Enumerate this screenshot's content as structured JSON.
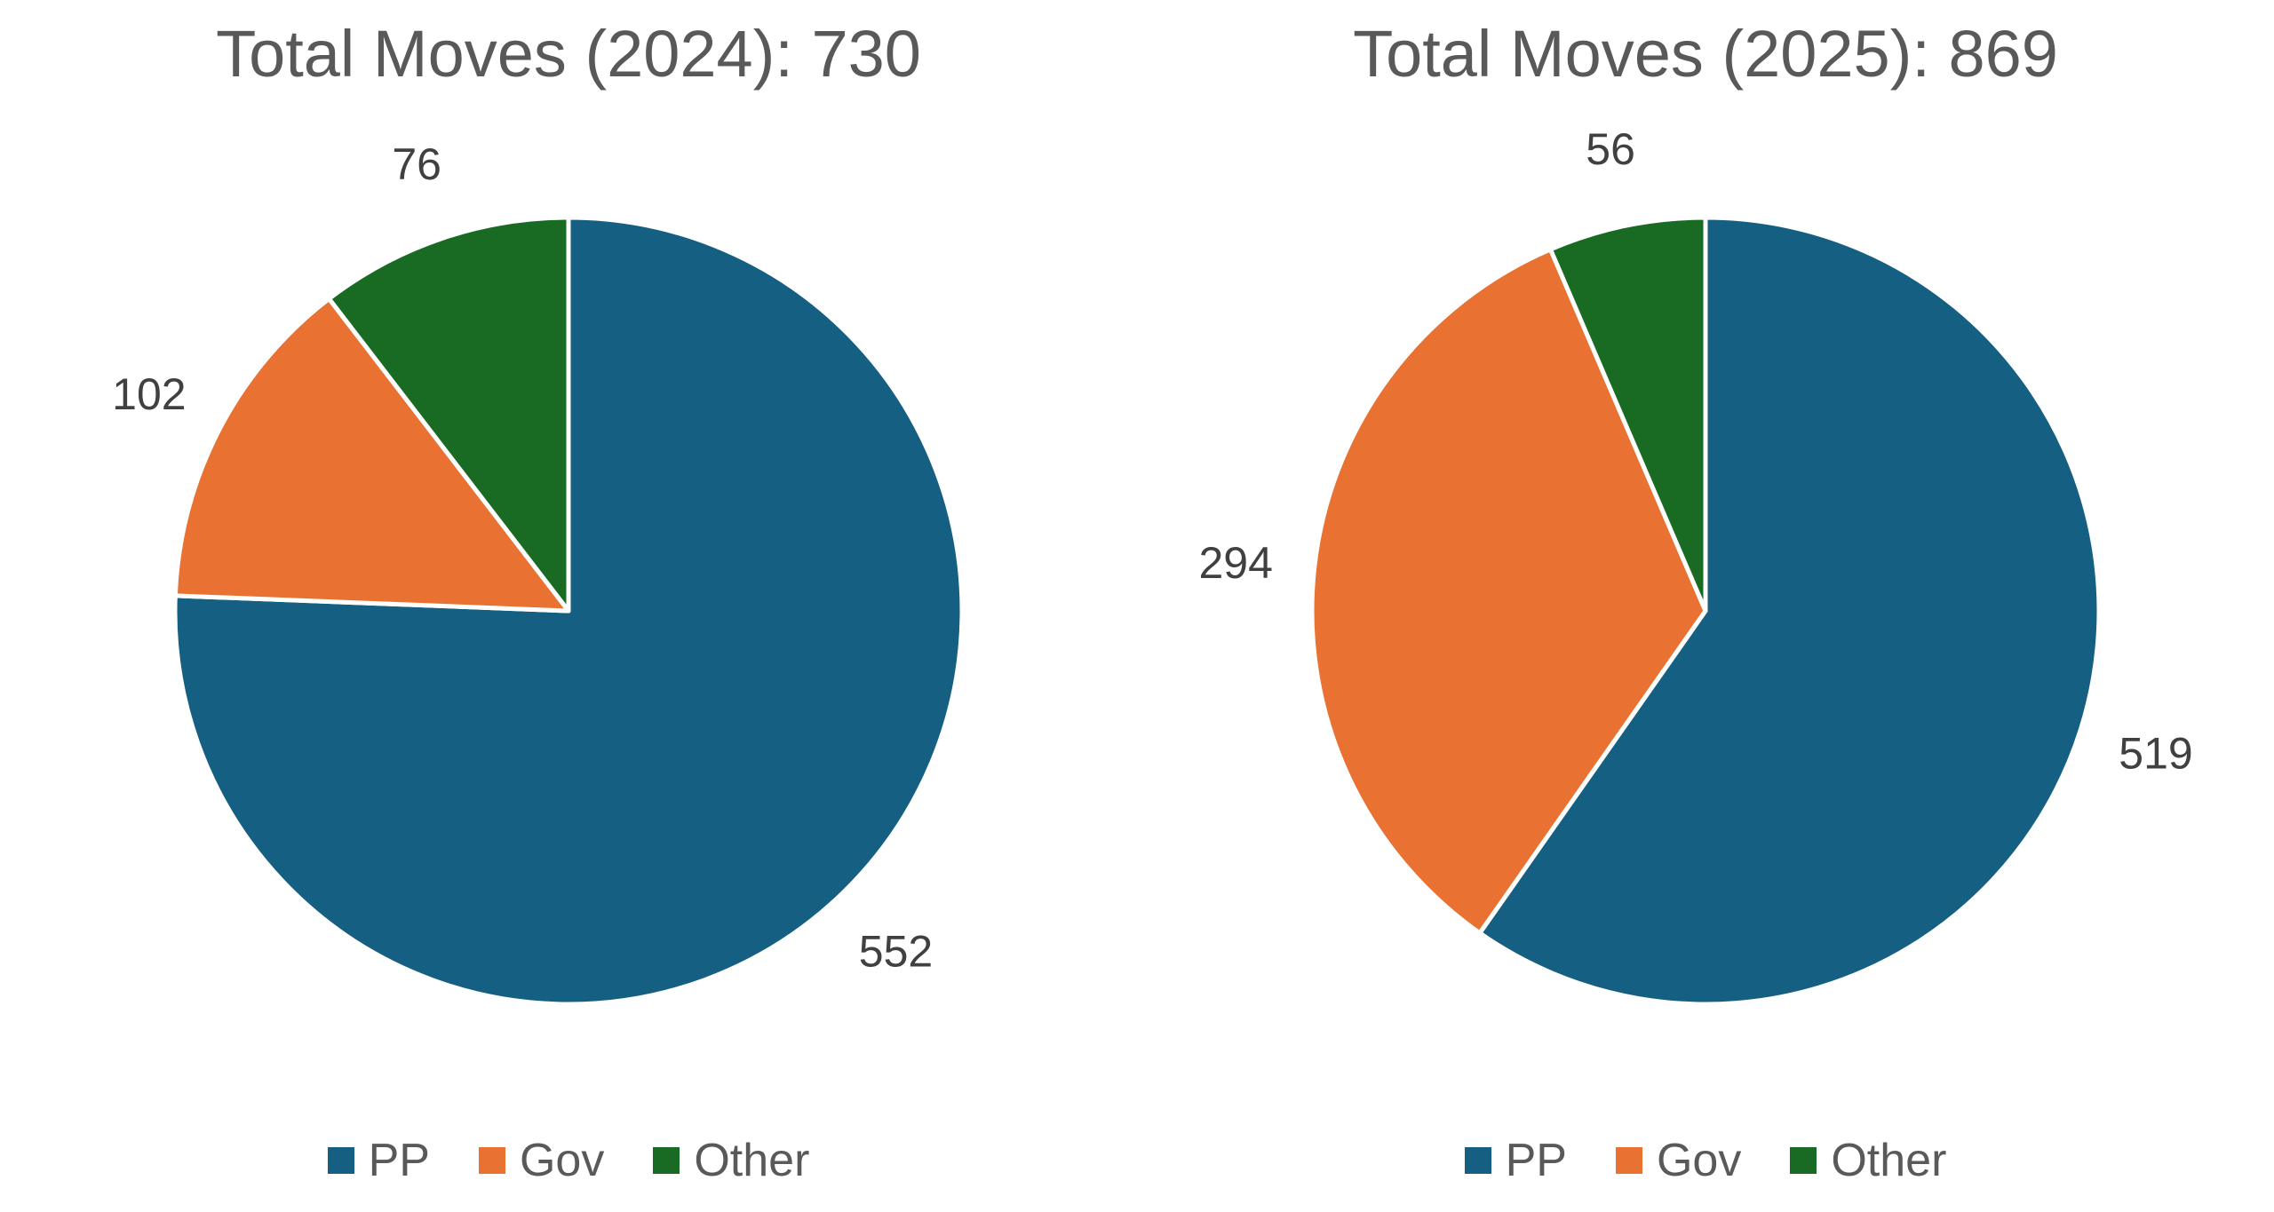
{
  "figure": {
    "background": "#FFFFFF",
    "title_color": "#595959",
    "data_label_color": "#404040",
    "legend_text_color": "#595959",
    "slice_separator_color": "#FFFFFF"
  },
  "chart_data": [
    {
      "type": "pie",
      "title": "Total Moves (2024): 730",
      "total": 730,
      "categories": [
        "PP",
        "Gov",
        "Other"
      ],
      "values": [
        552,
        102,
        76
      ],
      "colors": [
        "#156082",
        "#E97132",
        "#196B24"
      ],
      "start_angle_deg": 0,
      "direction": "clockwise",
      "data_labels": "outside-end",
      "legend_position": "bottom"
    },
    {
      "type": "pie",
      "title": "Total Moves (2025): 869",
      "total": 869,
      "categories": [
        "PP",
        "Gov",
        "Other"
      ],
      "values": [
        519,
        294,
        56
      ],
      "colors": [
        "#156082",
        "#E97132",
        "#196B24"
      ],
      "start_angle_deg": 0,
      "direction": "clockwise",
      "data_labels": "outside-end",
      "legend_position": "bottom"
    }
  ]
}
